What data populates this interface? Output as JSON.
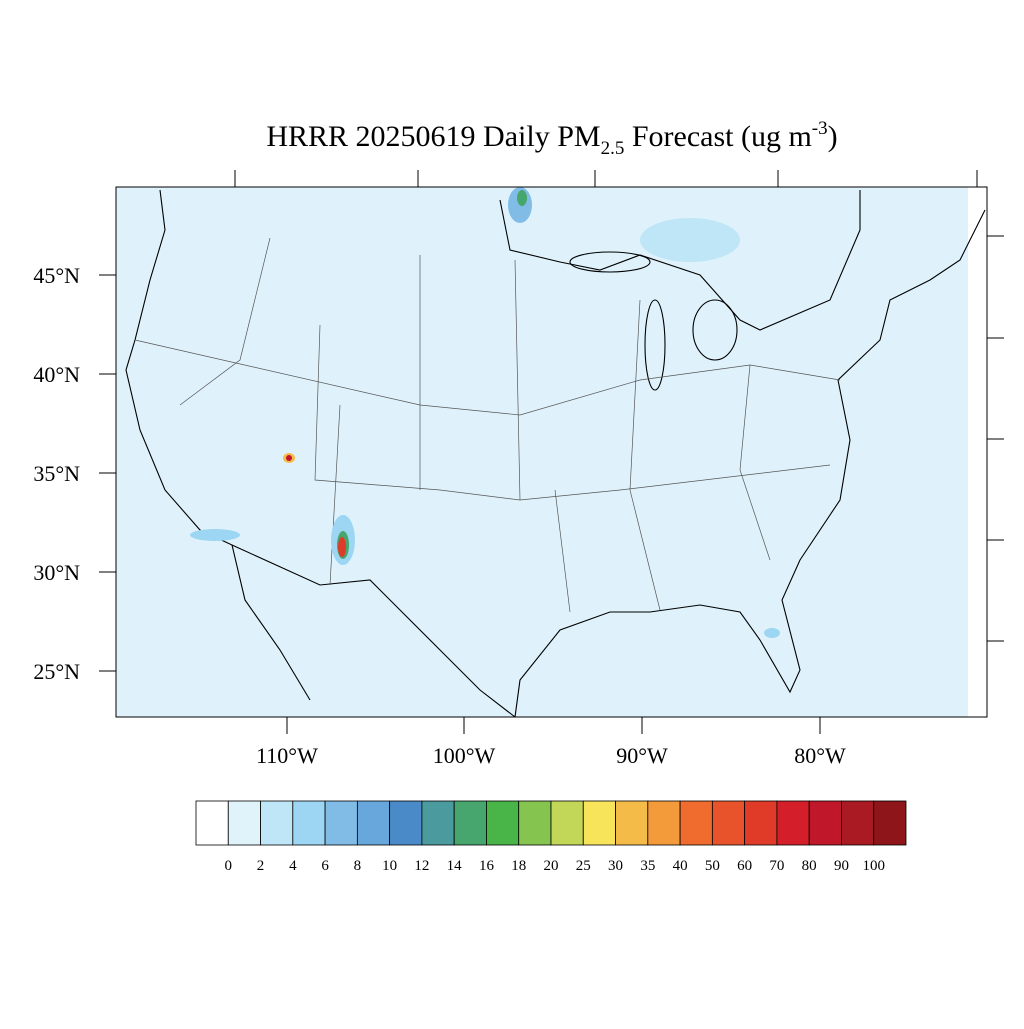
{
  "title": {
    "main": "HRRR 20250619 Daily PM",
    "subscript": "2.5",
    "middle": " Forecast (ug m",
    "superscript": "-3",
    "end": ")"
  },
  "lat_labels": [
    "45°N",
    "40°N",
    "35°N",
    "30°N",
    "25°N"
  ],
  "lon_labels": [
    "110°W",
    "100°W",
    "90°W",
    "80°W"
  ],
  "colorbar": {
    "levels": [
      0,
      2,
      4,
      6,
      8,
      10,
      12,
      14,
      16,
      18,
      20,
      25,
      30,
      35,
      40,
      50,
      60,
      70,
      80,
      90,
      100
    ],
    "colors": [
      "#ffffff",
      "#e0f3fb",
      "#bfe6f7",
      "#9dd6f3",
      "#80bce6",
      "#67a7dc",
      "#4a8ac8",
      "#4a9a9e",
      "#47a66d",
      "#49b548",
      "#85c44f",
      "#c2d657",
      "#f7e45a",
      "#f5bb48",
      "#f39a3a",
      "#ef6b2e",
      "#e8532b",
      "#e03a28",
      "#d41f2a",
      "#c0182a",
      "#aa1a22",
      "#8e1519"
    ]
  }
}
